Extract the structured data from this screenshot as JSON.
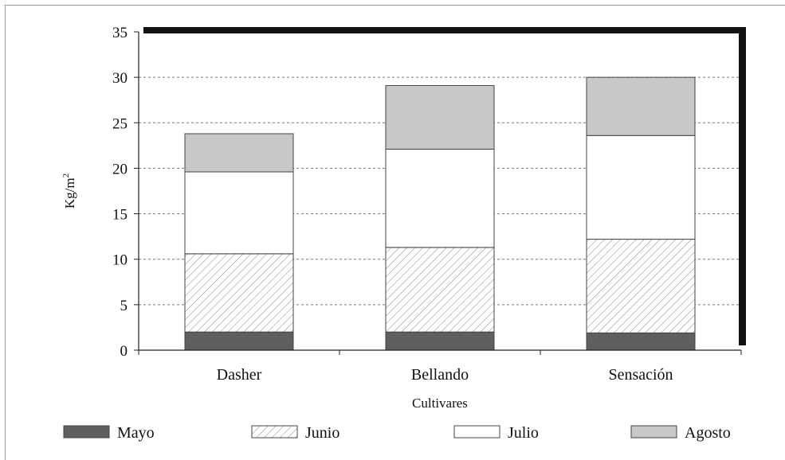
{
  "chart_data": {
    "type": "bar",
    "stacked": true,
    "categories": [
      "Dasher",
      "Bellando",
      "Sensación"
    ],
    "series": [
      {
        "name": "Mayo",
        "values": [
          2.0,
          2.0,
          1.9
        ]
      },
      {
        "name": "Junio",
        "values": [
          8.6,
          9.3,
          10.3
        ]
      },
      {
        "name": "Julio",
        "values": [
          9.0,
          10.8,
          11.4
        ]
      },
      {
        "name": "Agosto",
        "values": [
          4.2,
          7.0,
          6.4
        ]
      }
    ],
    "xlabel": "Cultivares",
    "ylabel": "Kg/m",
    "ylabel_superscript": "2",
    "ylim": [
      0,
      35
    ],
    "yticks": [
      "0",
      "5",
      "10",
      "15",
      "20",
      "25",
      "30",
      "35"
    ],
    "grid": true,
    "legend_position": "bottom",
    "colors": {
      "Mayo": "#5f5f5f",
      "Junio": "#ffffff",
      "Julio": "#ffffff",
      "Agosto": "#c8c8c8"
    },
    "patterns": {
      "Junio": "diagonal-hatch"
    }
  }
}
